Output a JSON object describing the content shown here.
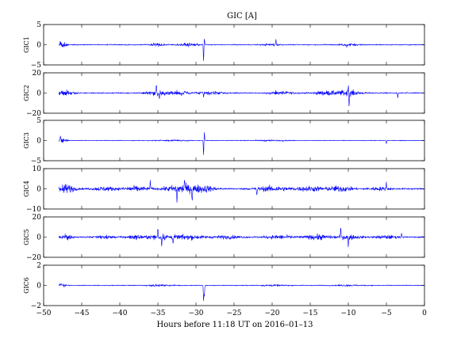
{
  "chart_data": {
    "type": "line",
    "title": "GIC [A]",
    "xlabel": "Hours before  11:18 UT on 2016–01–13",
    "xlim": [
      -50,
      0
    ],
    "xticks": [
      -50,
      -45,
      -40,
      -35,
      -30,
      -25,
      -20,
      -15,
      -10,
      -5,
      0
    ],
    "xtick_labels": [
      "−50",
      "−45",
      "−40",
      "−35",
      "−30",
      "−25",
      "−20",
      "−15",
      "−10",
      "−5",
      "0"
    ],
    "data_start_hour": -48,
    "line_color": "#0000ff",
    "grid": false,
    "panels": [
      {
        "ylabel": "GIC1",
        "ylim": [
          -5,
          5
        ],
        "yticks": [
          -5,
          0,
          5
        ],
        "ytick_labels": [
          "−5",
          "0",
          "5"
        ],
        "noise": 0.12,
        "bursts": [
          [
            -47.5,
            0.5,
            0.8
          ],
          [
            -35.0,
            1.2,
            0.3
          ],
          [
            -31.0,
            1.5,
            0.3
          ],
          [
            -20.0,
            1.0,
            0.25
          ],
          [
            -10.0,
            1.5,
            0.25
          ]
        ],
        "spikes": [
          [
            -47.8,
            0.6
          ],
          [
            -29.0,
            -4.0
          ],
          [
            -28.9,
            1.5
          ],
          [
            -19.5,
            1.2
          ],
          [
            -10.2,
            -0.8
          ]
        ]
      },
      {
        "ylabel": "GIC2",
        "ylim": [
          -20,
          20
        ],
        "yticks": [
          -20,
          0,
          20
        ],
        "ytick_labels": [
          "−20",
          "0",
          "20"
        ],
        "noise": 0.6,
        "bursts": [
          [
            -47.0,
            1.0,
            2.5
          ],
          [
            -35.0,
            1.5,
            2.0
          ],
          [
            -32.0,
            1.5,
            1.5
          ],
          [
            -28.0,
            1.5,
            1.2
          ],
          [
            -19.0,
            1.5,
            1.5
          ],
          [
            -13.0,
            1.5,
            1.8
          ],
          [
            -10.0,
            1.5,
            2.5
          ]
        ],
        "spikes": [
          [
            -35.2,
            9.0
          ],
          [
            -34.8,
            -6.0
          ],
          [
            -10.0,
            10.0
          ],
          [
            -9.9,
            -13.0
          ],
          [
            -3.5,
            -5.0
          ],
          [
            -29.0,
            -5.0
          ]
        ]
      },
      {
        "ylabel": "GIC3",
        "ylim": [
          -5,
          5
        ],
        "yticks": [
          -5,
          0,
          5
        ],
        "ytick_labels": [
          "−5",
          "0",
          "5"
        ],
        "noise": 0.08,
        "bursts": [
          [
            -47.5,
            0.5,
            0.5
          ],
          [
            -33.0,
            2.0,
            0.15
          ],
          [
            -20.0,
            2.0,
            0.12
          ]
        ],
        "spikes": [
          [
            -29.0,
            -3.5
          ],
          [
            -28.9,
            2.0
          ],
          [
            -47.8,
            1.0
          ],
          [
            -5.0,
            -0.8
          ]
        ]
      },
      {
        "ylabel": "GIC4",
        "ylim": [
          -10,
          10
        ],
        "yticks": [
          -10,
          0,
          10
        ],
        "ytick_labels": [
          "−10",
          "0",
          "10"
        ],
        "noise": 0.4,
        "bursts": [
          [
            -47.0,
            1.0,
            2.0
          ],
          [
            -42.0,
            1.5,
            0.8
          ],
          [
            -38.0,
            1.5,
            1.1
          ],
          [
            -32.0,
            2.0,
            1.8
          ],
          [
            -29.0,
            1.5,
            1.4
          ],
          [
            -20.0,
            2.0,
            1.1
          ],
          [
            -15.0,
            2.0,
            1.0
          ],
          [
            -11.0,
            1.5,
            1.2
          ],
          [
            -6.0,
            1.5,
            0.6
          ]
        ],
        "spikes": [
          [
            -32.5,
            -6.0
          ],
          [
            -31.5,
            5.0
          ],
          [
            -30.5,
            -5.5
          ],
          [
            -36.0,
            4.0
          ],
          [
            -5.0,
            3.0
          ],
          [
            -22.0,
            -3.5
          ]
        ]
      },
      {
        "ylabel": "GIC5",
        "ylim": [
          -20,
          20
        ],
        "yticks": [
          -20,
          0,
          20
        ],
        "ytick_labels": [
          "−20",
          "0",
          "20"
        ],
        "noise": 0.7,
        "bursts": [
          [
            -47.0,
            1.0,
            2.0
          ],
          [
            -42.0,
            1.0,
            1.5
          ],
          [
            -38.0,
            1.5,
            1.5
          ],
          [
            -34.5,
            1.5,
            2.2
          ],
          [
            -31.0,
            2.0,
            1.8
          ],
          [
            -26.0,
            2.0,
            1.2
          ],
          [
            -19.0,
            2.0,
            1.5
          ],
          [
            -14.0,
            1.5,
            2.2
          ],
          [
            -10.0,
            1.5,
            2.0
          ],
          [
            -5.0,
            1.5,
            1.3
          ]
        ],
        "spikes": [
          [
            -35.0,
            9.0
          ],
          [
            -34.5,
            -7.0
          ],
          [
            -10.0,
            -11.0
          ],
          [
            -11.0,
            9.0
          ],
          [
            -3.0,
            4.0
          ],
          [
            -33.0,
            -6.0
          ]
        ]
      },
      {
        "ylabel": "GIC6",
        "ylim": [
          -2,
          2
        ],
        "yticks": [
          -2,
          0,
          2
        ],
        "ytick_labels": [
          "−2",
          "0",
          "2"
        ],
        "noise": 0.04,
        "bursts": [
          [
            -47.5,
            0.5,
            0.15
          ],
          [
            -35.0,
            2.0,
            0.06
          ],
          [
            -20.0,
            2.0,
            0.05
          ],
          [
            -10.0,
            2.0,
            0.05
          ]
        ],
        "spikes": [
          [
            -29.0,
            -1.5
          ],
          [
            -28.9,
            -1.0
          ],
          [
            -47.8,
            0.2
          ]
        ]
      }
    ]
  }
}
